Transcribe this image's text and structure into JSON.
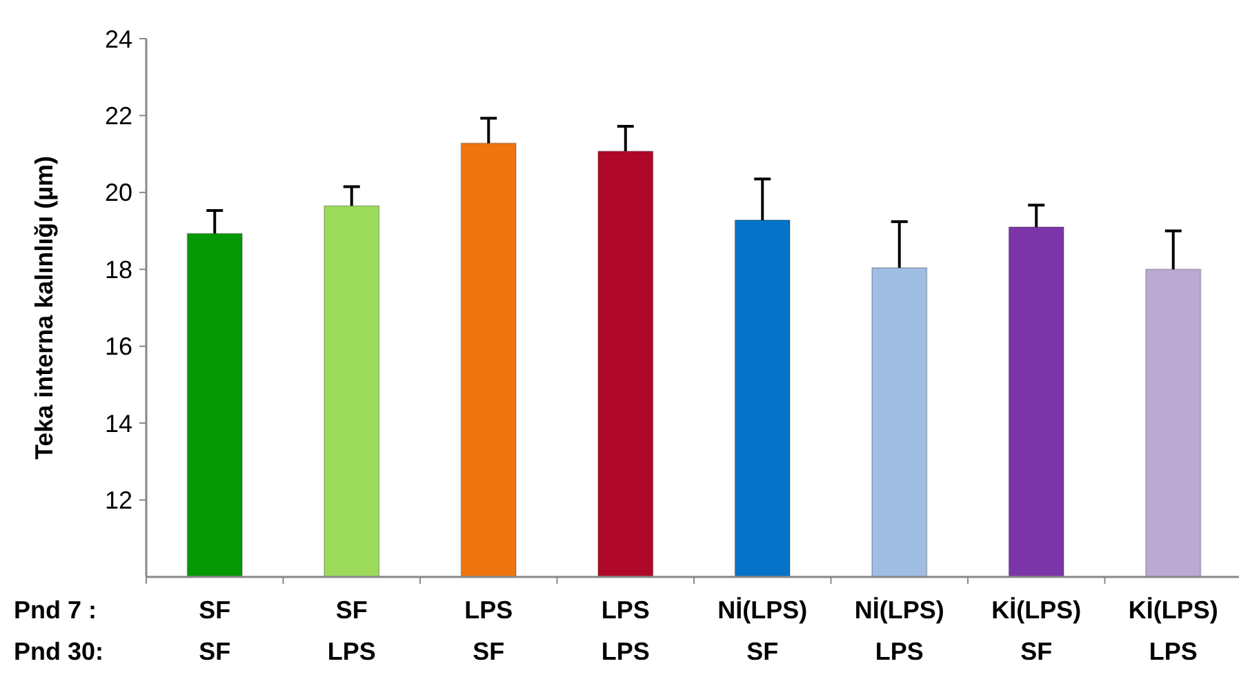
{
  "chart_data": {
    "type": "bar",
    "ylabel": "Teka interna kalınlığı (µm)",
    "categories": [
      "SF\nSF",
      "SF\nLPS",
      "LPS\nSF",
      "LPS\nLPS",
      "Nİ(LPS)\nSF",
      "Nİ(LPS)\nLPS",
      "Kİ(LPS)\nSF",
      "Kİ(LPS)\nLPS"
    ],
    "values": [
      18.93,
      19.65,
      21.28,
      21.07,
      19.28,
      18.04,
      19.1,
      18.0
    ],
    "errors": [
      0.6,
      0.5,
      0.65,
      0.65,
      1.07,
      1.2,
      0.57,
      1.0
    ],
    "colors": [
      "#059a05",
      "#9ddb5a",
      "#ef7510",
      "#b00828",
      "#0574c8",
      "#a0bde3",
      "#7b35a8",
      "#bca9d3"
    ],
    "ylim": [
      10,
      24
    ],
    "yticks": [
      12,
      14,
      16,
      18,
      20,
      22,
      24
    ],
    "grid": false,
    "annotations": [
      "Pnd 7 :",
      "Pnd 30:"
    ]
  }
}
